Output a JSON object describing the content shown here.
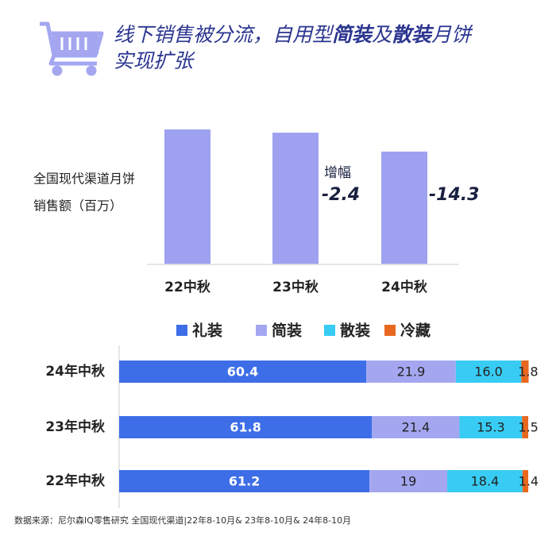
{
  "title_parts": [
    "线下销售被分流，自用型",
    "简装",
    "及",
    "散装",
    "月饼",
    "实现扩张"
  ],
  "source": "数据来源：尼尔森IQ零售研究 全国现代渠道|22年8-10月& 23年8-10月& 24年8-10月",
  "chart_data": [
    {
      "type": "bar",
      "ylabel_lines": [
        "全国现代渠道月饼",
        "销售额（百万）"
      ],
      "categories": [
        "22中秋",
        "23中秋",
        "24中秋"
      ],
      "values": [
        100,
        97.6,
        83.6
      ],
      "color": "#9da1f0",
      "ylim": [
        0,
        100
      ],
      "annotations": [
        "增幅",
        "-2.4",
        "-14.3"
      ]
    },
    {
      "type": "stacked-barh",
      "categories": [
        "24年中秋",
        "23年中秋",
        "22年中秋"
      ],
      "xlim": [
        0,
        100
      ],
      "series": [
        {
          "name": "礼装",
          "color": "#3d6ee8",
          "values": [
            60.4,
            61.8,
            61.2
          ]
        },
        {
          "name": "简装",
          "color": "#a4a7f0",
          "values": [
            21.9,
            21.4,
            19
          ]
        },
        {
          "name": "散装",
          "color": "#38ccf4",
          "values": [
            16.0,
            15.3,
            18.4
          ],
          "value_labels": [
            "16.0",
            "15.3",
            "18.4"
          ]
        },
        {
          "name": "冷藏",
          "color": "#e8681f",
          "values": [
            1.8,
            1.5,
            1.4
          ]
        }
      ]
    }
  ]
}
